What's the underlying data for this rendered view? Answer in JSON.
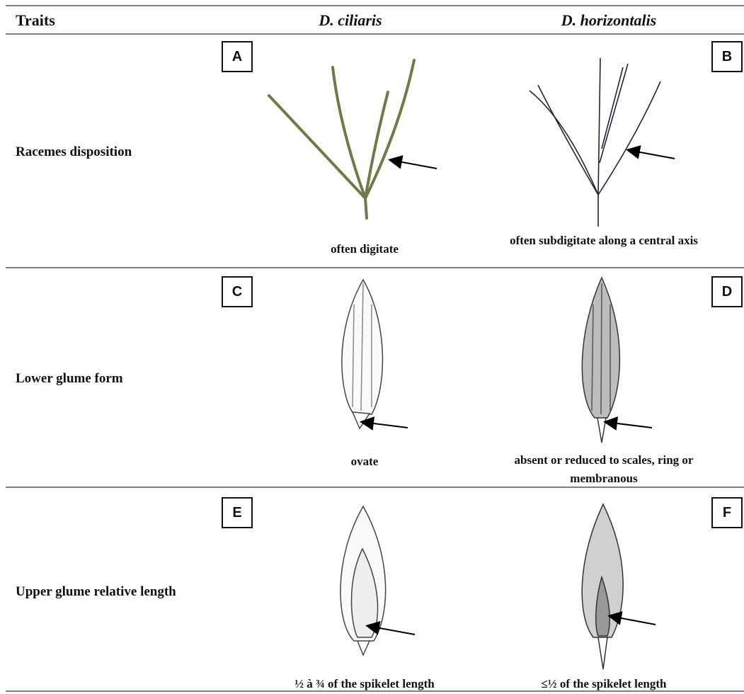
{
  "header": {
    "traits": "Traits",
    "species_1": "D. ciliaris",
    "species_2": "D. horizontalis"
  },
  "rows": [
    {
      "trait": "Racemes disposition",
      "panels": [
        {
          "letter": "A",
          "caption": "often digitate"
        },
        {
          "letter": "B",
          "caption": "often subdigitate along a central axis"
        }
      ]
    },
    {
      "trait": "Lower glume form",
      "panels": [
        {
          "letter": "C",
          "caption": "ovate"
        },
        {
          "letter": "D",
          "caption": "absent or reduced to scales, ring or membranous"
        }
      ]
    },
    {
      "trait": "Upper glume relative length",
      "panels": [
        {
          "letter": "E",
          "caption": "½ à ¾ of the spikelet length"
        },
        {
          "letter": "F",
          "caption": "≤½ of the spikelet length"
        }
      ]
    }
  ]
}
